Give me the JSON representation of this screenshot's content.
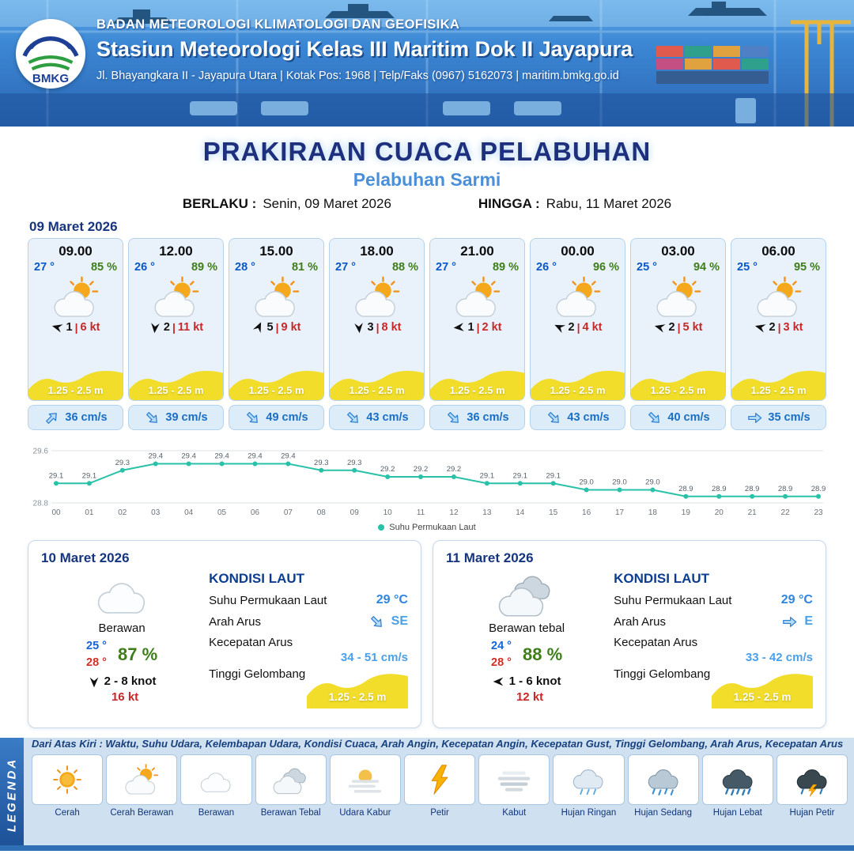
{
  "header": {
    "logo": "BMKG",
    "agency": "BADAN METEOROLOGI KLIMATOLOGI DAN GEOFISIKA",
    "station": "Stasiun Meteorologi Kelas III Maritim Dok II Jayapura",
    "contact": "Jl. Bhayangkara II - Jayapura Utara | Kotak Pos: 1968 | Telp/Faks (0967) 5162073 | maritim.bmkg.go.id"
  },
  "title": {
    "main": "PRAKIRAAN CUACA PELABUHAN",
    "subtitle": "Pelabuhan Sarmi",
    "valid_from_label": "BERLAKU :",
    "valid_from": "Senin, 09 Maret 2026",
    "valid_to_label": "HINGGA :",
    "valid_to": "Rabu, 11 Maret 2026"
  },
  "hourly": {
    "date": "09 Maret 2026",
    "cards": [
      {
        "time": "09.00",
        "temp": "27 °",
        "humidity": "85 %",
        "icon": "sun-cloud",
        "wind_count": "1",
        "wind_speed": "6 kt",
        "wind_rotation": 195,
        "wave": "1.25 - 2.5 m",
        "current": "36 cm/s",
        "current_rotation": -45
      },
      {
        "time": "12.00",
        "temp": "26 °",
        "humidity": "89 %",
        "icon": "sun-cloud",
        "wind_count": "2",
        "wind_speed": "11 kt",
        "wind_rotation": 95,
        "wave": "1.25 - 2.5 m",
        "current": "39 cm/s",
        "current_rotation": 45
      },
      {
        "time": "15.00",
        "temp": "28 °",
        "humidity": "81 %",
        "icon": "sun-cloud",
        "wind_count": "5",
        "wind_speed": "9 kt",
        "wind_rotation": -65,
        "wave": "1.25 - 2.5 m",
        "current": "49 cm/s",
        "current_rotation": 45
      },
      {
        "time": "18.00",
        "temp": "27 °",
        "humidity": "88 %",
        "icon": "sun-cloud",
        "wind_count": "3",
        "wind_speed": "8 kt",
        "wind_rotation": 85,
        "wave": "1.25 - 2.5 m",
        "current": "43 cm/s",
        "current_rotation": 45
      },
      {
        "time": "21.00",
        "temp": "27 °",
        "humidity": "89 %",
        "icon": "sun-cloud",
        "wind_count": "1",
        "wind_speed": "2 kt",
        "wind_rotation": 175,
        "wave": "1.25 - 2.5 m",
        "current": "36 cm/s",
        "current_rotation": 45
      },
      {
        "time": "00.00",
        "temp": "26 °",
        "humidity": "96 %",
        "icon": "sun-cloud",
        "wind_count": "2",
        "wind_speed": "4 kt",
        "wind_rotation": 205,
        "wave": "1.25 - 2.5 m",
        "current": "43 cm/s",
        "current_rotation": 45
      },
      {
        "time": "03.00",
        "temp": "25 °",
        "humidity": "94 %",
        "icon": "sun-cloud",
        "wind_count": "2",
        "wind_speed": "5 kt",
        "wind_rotation": 195,
        "wave": "1.25 - 2.5 m",
        "current": "40 cm/s",
        "current_rotation": 45
      },
      {
        "time": "06.00",
        "temp": "25 °",
        "humidity": "95 %",
        "icon": "sun-cloud",
        "wind_count": "2",
        "wind_speed": "3 kt",
        "wind_rotation": 195,
        "wave": "1.25 - 2.5 m",
        "current": "35 cm/s",
        "current_rotation": 0
      }
    ]
  },
  "chart_data": {
    "type": "line",
    "legend": "Suhu Permukaan Laut",
    "x": [
      "00",
      "01",
      "02",
      "03",
      "04",
      "05",
      "06",
      "07",
      "08",
      "09",
      "10",
      "11",
      "12",
      "13",
      "14",
      "15",
      "16",
      "17",
      "18",
      "19",
      "20",
      "21",
      "22",
      "23"
    ],
    "values": [
      29.1,
      29.1,
      29.3,
      29.4,
      29.4,
      29.4,
      29.4,
      29.4,
      29.3,
      29.3,
      29.2,
      29.2,
      29.2,
      29.1,
      29.1,
      29.1,
      29.0,
      29.0,
      29.0,
      28.9,
      28.9,
      28.9,
      28.9,
      28.9
    ],
    "ylim": [
      28.8,
      29.6
    ],
    "yticks": [
      28.8,
      29.6
    ],
    "xlabel": "",
    "ylabel": "",
    "line_color": "#29c1a8",
    "grid": true,
    "legend_position": "bottom"
  },
  "daily": [
    {
      "date": "10 Maret 2026",
      "icon": "cloud",
      "condition": "Berawan",
      "temp_min": "25 °",
      "temp_max": "28 °",
      "humidity": "87 %",
      "wind_range": "2 - 8 knot",
      "wind_rotation": 90,
      "gust": "16 kt",
      "sea": {
        "heading": "KONDISI LAUT",
        "sst_label": "Suhu Permukaan Laut",
        "sst": "29 °C",
        "current_dir_label": "Arah Arus",
        "current_dir": "SE",
        "current_rotation": 45,
        "current_speed_label": "Kecepatan Arus",
        "current_speed": "34 - 51 cm/s",
        "wave_label": "Tinggi Gelombang",
        "wave": "1.25 - 2.5 m"
      }
    },
    {
      "date": "11 Maret 2026",
      "icon": "clouds",
      "condition": "Berawan tebal",
      "temp_min": "24 °",
      "temp_max": "28 °",
      "humidity": "88 %",
      "wind_range": "1 - 6 knot",
      "wind_rotation": 180,
      "gust": "12 kt",
      "sea": {
        "heading": "KONDISI LAUT",
        "sst_label": "Suhu Permukaan Laut",
        "sst": "29 °C",
        "current_dir_label": "Arah Arus",
        "current_dir": "E",
        "current_rotation": 0,
        "current_speed_label": "Kecepatan Arus",
        "current_speed": "33 - 42 cm/s",
        "wave_label": "Tinggi Gelombang",
        "wave": "1.25 - 2.5 m"
      }
    }
  ],
  "legend": {
    "vertical_label": "LEGENDA",
    "description": "Dari Atas Kiri : Waktu, Suhu Udara, Kelembapan Udara, Kondisi Cuaca, Arah Angin, Kecepatan Angin, Kecepatan Gust, Tinggi Gelombang, Arah Arus, Kecepatan Arus",
    "items": [
      {
        "label": "Cerah",
        "icon": "sun"
      },
      {
        "label": "Cerah Berawan",
        "icon": "sun-cloud"
      },
      {
        "label": "Berawan",
        "icon": "cloud"
      },
      {
        "label": "Berawan Tebal",
        "icon": "clouds"
      },
      {
        "label": "Udara Kabur",
        "icon": "haze"
      },
      {
        "label": "Petir",
        "icon": "lightning"
      },
      {
        "label": "Kabut",
        "icon": "fog"
      },
      {
        "label": "Hujan Ringan",
        "icon": "rain-light"
      },
      {
        "label": "Hujan Sedang",
        "icon": "rain-moderate"
      },
      {
        "label": "Hujan Lebat",
        "icon": "rain-heavy"
      },
      {
        "label": "Hujan Petir",
        "icon": "thunderstorm"
      }
    ]
  },
  "colors": {
    "accent_navy": "#16357e",
    "accent_blue": "#4a90d9",
    "wave_yellow": "#f2de2a",
    "line_teal": "#29c1a8",
    "temp_blue": "#0a58c8",
    "humidity_green": "#3f7d1a",
    "alert_red": "#c62828"
  }
}
